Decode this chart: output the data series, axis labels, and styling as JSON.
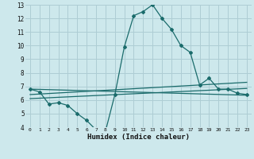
{
  "xlabel": "Humidex (Indice chaleur)",
  "bg_color": "#cde8ec",
  "grid_color": "#aecdd4",
  "line_color": "#1a6b6b",
  "xlim": [
    -0.5,
    23.5
  ],
  "ylim": [
    4,
    13
  ],
  "yticks": [
    4,
    5,
    6,
    7,
    8,
    9,
    10,
    11,
    12,
    13
  ],
  "xticks": [
    0,
    1,
    2,
    3,
    4,
    5,
    6,
    7,
    8,
    9,
    10,
    11,
    12,
    13,
    14,
    15,
    16,
    17,
    18,
    19,
    20,
    21,
    22,
    23
  ],
  "series1_x": [
    0,
    1,
    2,
    3,
    4,
    5,
    6,
    7,
    8,
    9,
    10,
    11,
    12,
    13,
    14,
    15,
    16,
    17,
    18,
    19,
    20,
    21,
    22,
    23
  ],
  "series1_y": [
    6.8,
    6.6,
    5.7,
    5.8,
    5.6,
    5.0,
    4.5,
    3.8,
    3.7,
    6.4,
    9.9,
    12.2,
    12.5,
    13.0,
    12.0,
    11.2,
    10.0,
    9.5,
    7.1,
    7.6,
    6.8,
    6.8,
    6.5,
    6.4
  ],
  "series2_x": [
    0,
    23
  ],
  "series2_y": [
    6.8,
    6.35
  ],
  "series3_x": [
    0,
    23
  ],
  "series3_y": [
    6.1,
    6.85
  ],
  "series4_x": [
    0,
    23
  ],
  "series4_y": [
    6.4,
    7.3
  ]
}
